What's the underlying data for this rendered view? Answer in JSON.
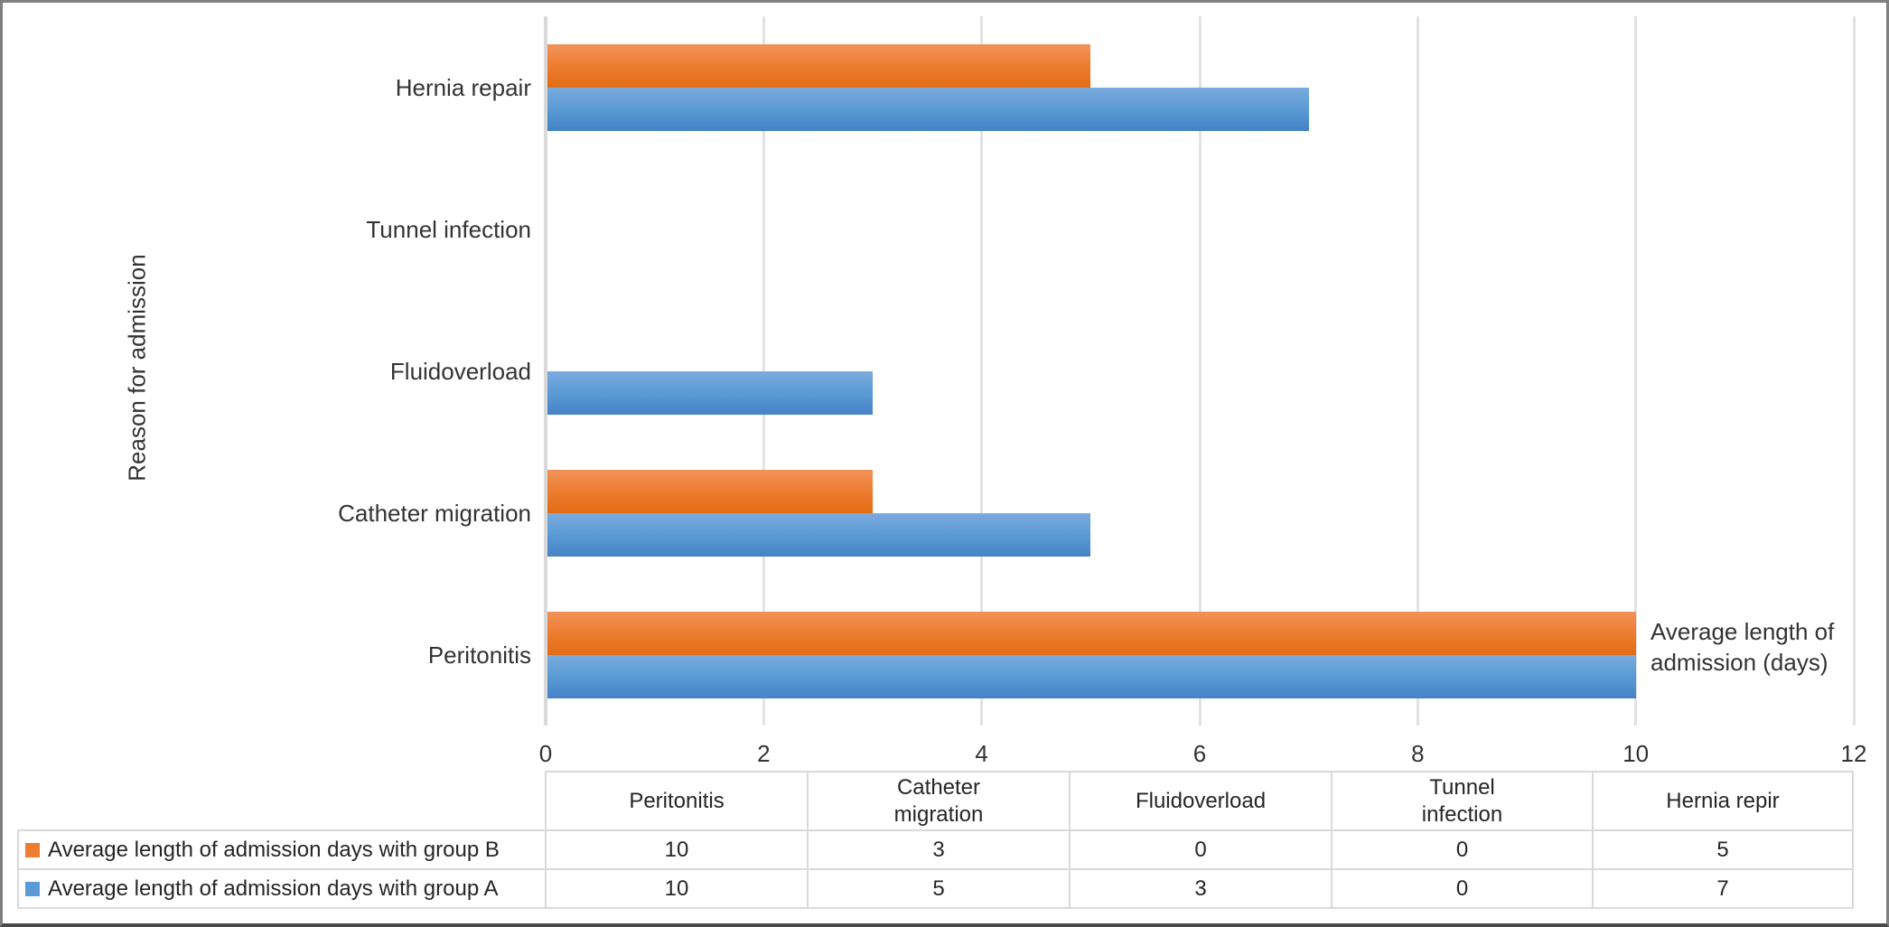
{
  "figure": {
    "y_axis_title": "Reason for admission",
    "annotation": "Average length of admission (days)",
    "background_color": "#FFFFFF",
    "frame_border_color": "#7F7F7F",
    "gridline_color": "#E2E2E2"
  },
  "chart_data": {
    "type": "bar",
    "orientation": "horizontal",
    "title": "",
    "ylabel": "Reason for admission",
    "xlabel": "",
    "annotation": "Average length of admission (days)",
    "xlim": [
      0,
      12
    ],
    "xticks": [
      "0",
      "2",
      "4",
      "6",
      "8",
      "10",
      "12"
    ],
    "grid": true,
    "category_order": "top-to-bottom",
    "categories": [
      "Hernia repair",
      "Tunnel infection",
      "Fluidoverload",
      "Catheter migration",
      "Peritonitis"
    ],
    "series": [
      {
        "name": "Average length of admission days with group B",
        "short_name": "group-b",
        "color": "#ED7D31",
        "values": [
          5,
          0,
          0,
          3,
          10
        ]
      },
      {
        "name": "Average length of admission days with group A",
        "short_name": "group-a",
        "color": "#5B9BD5",
        "values": [
          7,
          0,
          3,
          5,
          10
        ]
      }
    ],
    "legend_position": "table-below"
  },
  "table": {
    "headers": [
      [
        "Peritonitis"
      ],
      [
        "Catheter",
        "migration"
      ],
      [
        "Fluidoverload"
      ],
      [
        "Tunnel",
        "infection"
      ],
      [
        "Hernia repir"
      ]
    ],
    "rows": [
      {
        "label": "Average length of admission days with group B",
        "short_name": "group-b",
        "swatch_color": "#ED7D31",
        "values": [
          "10",
          "3",
          "0",
          "0",
          "5"
        ]
      },
      {
        "label": "Average length of admission days with group A",
        "short_name": "group-a",
        "swatch_color": "#5B9BD5",
        "values": [
          "10",
          "5",
          "3",
          "0",
          "7"
        ]
      }
    ]
  }
}
